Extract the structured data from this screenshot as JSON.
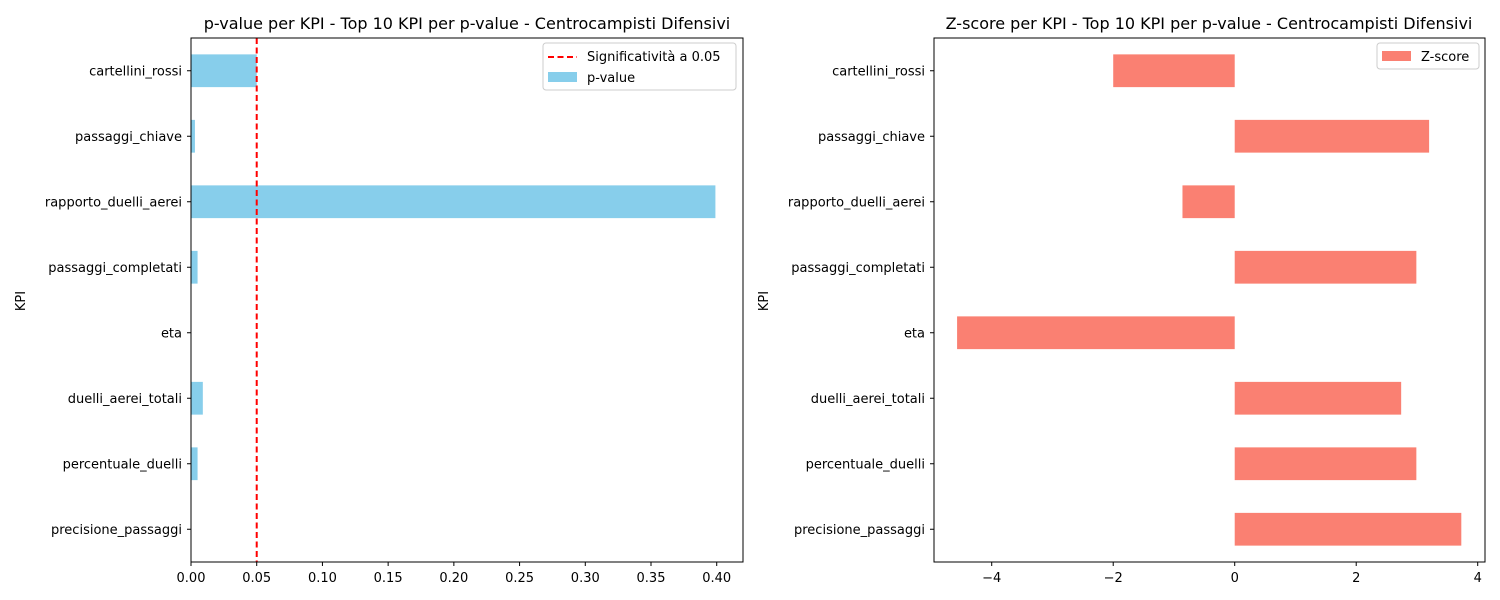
{
  "chart_data": [
    {
      "type": "bar",
      "orientation": "horizontal",
      "title": "p-value per KPI - Top 10 KPI per p-value - Centrocampisti Difensivi",
      "xlabel": "",
      "ylabel": "KPI",
      "categories": [
        "cartellini_rossi",
        "passaggi_chiave",
        "rapporto_duelli_aerei",
        "passaggi_completati",
        "eta",
        "duelli_aerei_totali",
        "percentuale_duelli",
        "precisione_passaggi"
      ],
      "series": [
        {
          "name": "p-value",
          "color": "#87ceeb",
          "values": [
            0.05,
            0.003,
            0.399,
            0.005,
            0.0,
            0.009,
            0.005,
            0.0002
          ]
        }
      ],
      "reference_line": {
        "value": 0.05,
        "label": "Significatività a 0.05",
        "color": "#ff0000",
        "style": "dashed"
      },
      "xlim": [
        0,
        0.42
      ],
      "xticks": [
        0.0,
        0.05,
        0.1,
        0.15,
        0.2,
        0.25,
        0.3,
        0.35,
        0.4
      ],
      "xtick_labels": [
        "0.00",
        "0.05",
        "0.10",
        "0.15",
        "0.20",
        "0.25",
        "0.30",
        "0.35",
        "0.40"
      ],
      "grid": false,
      "legend_placement": "top-right"
    },
    {
      "type": "bar",
      "orientation": "horizontal",
      "title": "Z-score per KPI - Top 10 KPI per p-value - Centrocampisti Difensivi",
      "xlabel": "",
      "ylabel": "KPI",
      "categories": [
        "cartellini_rossi",
        "passaggi_chiave",
        "rapporto_duelli_aerei",
        "passaggi_completati",
        "eta",
        "duelli_aerei_totali",
        "percentuale_duelli",
        "precisione_passaggi"
      ],
      "series": [
        {
          "name": "Z-score",
          "color": "#fa8072",
          "values": [
            -2.0,
            3.2,
            -0.86,
            2.99,
            -4.57,
            2.74,
            2.99,
            3.73
          ]
        }
      ],
      "xlim": [
        -4.95,
        4.12
      ],
      "xticks": [
        -4,
        -2,
        0,
        2,
        4
      ],
      "xtick_labels": [
        "−4",
        "−2",
        "0",
        "2",
        "4"
      ],
      "grid": false,
      "legend_placement": "top-right"
    }
  ]
}
